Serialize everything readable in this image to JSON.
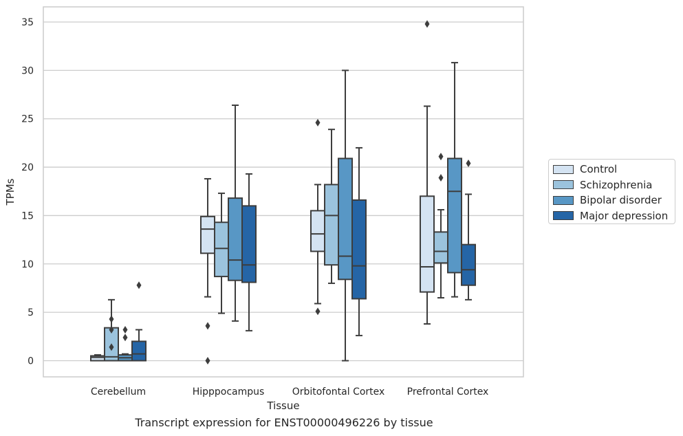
{
  "chart_data": {
    "type": "box",
    "title": "",
    "caption": "Transcript expression for ENST00000496226 by tissue",
    "xlabel": "Tissue",
    "ylabel": "TPMs",
    "ylim": [
      -1.7,
      36.5
    ],
    "yticks": [
      "0",
      "5",
      "10",
      "15",
      "20",
      "25",
      "30",
      "35"
    ],
    "grid": "horizontal",
    "legend_position": "right",
    "categories": [
      "Cerebellum",
      "Hipppocampus",
      "Orbitofontal Cortex",
      "Prefrontal Cortex"
    ],
    "series": [
      {
        "name": "Control",
        "color": "#d4e3f2",
        "boxes": [
          {
            "whislo": 0.0,
            "q1": 0.0,
            "med": 0.35,
            "q3": 0.5,
            "whishi": 0.6,
            "fliers": []
          },
          {
            "whislo": 6.6,
            "q1": 11.1,
            "med": 13.6,
            "q3": 14.9,
            "whishi": 18.8,
            "fliers": [
              3.6,
              0.0
            ]
          },
          {
            "whislo": 5.9,
            "q1": 11.3,
            "med": 13.1,
            "q3": 15.5,
            "whishi": 18.2,
            "fliers": [
              24.6,
              5.1
            ]
          },
          {
            "whislo": 3.8,
            "q1": 7.1,
            "med": 9.7,
            "q3": 17.0,
            "whishi": 26.3,
            "fliers": [
              34.8
            ]
          }
        ]
      },
      {
        "name": "Schizophrenia",
        "color": "#9bc3dd",
        "boxes": [
          {
            "whislo": 0.0,
            "q1": 0.0,
            "med": 0.4,
            "q3": 3.4,
            "whishi": 6.3,
            "fliers": [
              4.3,
              3.2,
              1.4
            ]
          },
          {
            "whislo": 4.9,
            "q1": 8.7,
            "med": 11.6,
            "q3": 14.3,
            "whishi": 17.3,
            "fliers": []
          },
          {
            "whislo": 8.0,
            "q1": 9.9,
            "med": 15.0,
            "q3": 18.2,
            "whishi": 23.9,
            "fliers": []
          },
          {
            "whislo": 6.5,
            "q1": 10.1,
            "med": 11.3,
            "q3": 13.3,
            "whishi": 15.6,
            "fliers": [
              21.1,
              18.9
            ]
          }
        ]
      },
      {
        "name": "Bipolar disorder",
        "color": "#5897c5",
        "boxes": [
          {
            "whislo": 0.0,
            "q1": 0.0,
            "med": 0.3,
            "q3": 0.6,
            "whishi": 0.7,
            "fliers": [
              3.2,
              2.4
            ]
          },
          {
            "whislo": 4.1,
            "q1": 8.3,
            "med": 10.4,
            "q3": 16.8,
            "whishi": 26.4,
            "fliers": []
          },
          {
            "whislo": 0.0,
            "q1": 8.4,
            "med": 10.8,
            "q3": 20.9,
            "whishi": 30.0,
            "fliers": []
          },
          {
            "whislo": 6.6,
            "q1": 9.1,
            "med": 17.5,
            "q3": 20.9,
            "whishi": 30.8,
            "fliers": []
          }
        ]
      },
      {
        "name": "Major depression",
        "color": "#2565a6",
        "boxes": [
          {
            "whislo": 0.0,
            "q1": 0.0,
            "med": 0.7,
            "q3": 2.0,
            "whishi": 3.2,
            "fliers": [
              7.8
            ]
          },
          {
            "whislo": 3.1,
            "q1": 8.1,
            "med": 9.9,
            "q3": 16.0,
            "whishi": 19.3,
            "fliers": []
          },
          {
            "whislo": 2.6,
            "q1": 6.4,
            "med": 9.8,
            "q3": 16.6,
            "whishi": 22.0,
            "fliers": []
          },
          {
            "whislo": 6.3,
            "q1": 7.8,
            "med": 9.4,
            "q3": 12.0,
            "whishi": 17.2,
            "fliers": [
              20.4
            ]
          }
        ]
      }
    ]
  }
}
